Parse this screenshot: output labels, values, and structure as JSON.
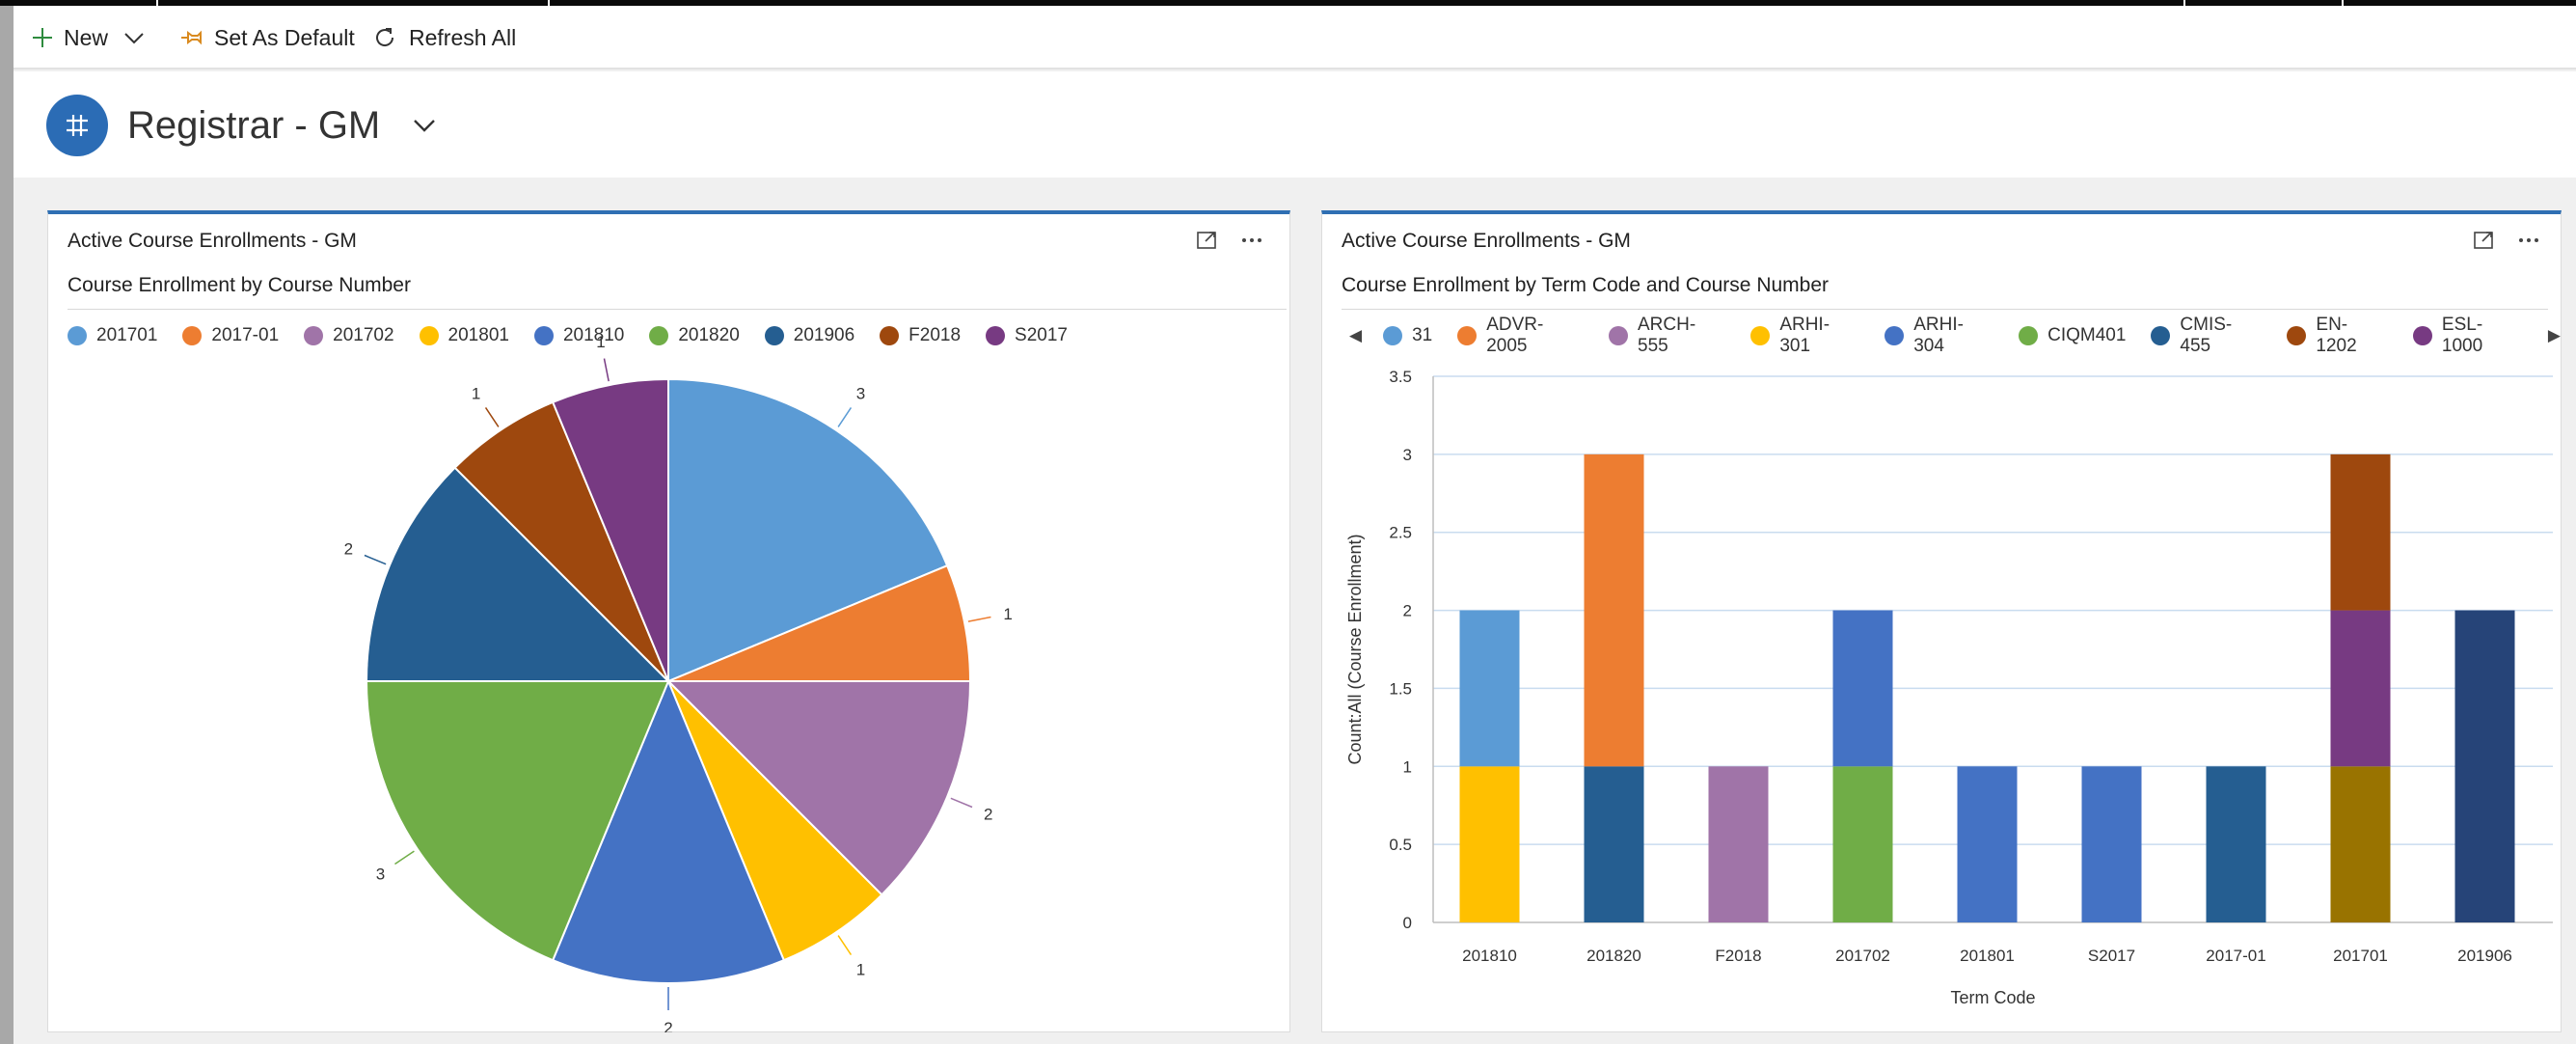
{
  "command_bar": {
    "new_label": "New",
    "set_default_label": "Set As Default",
    "refresh_label": "Refresh All"
  },
  "header": {
    "title": "Registrar - GM"
  },
  "colors": {
    "accent": "#2f6fb3",
    "topbar": "#0a0a0a"
  },
  "cards": [
    {
      "title": "Active Course Enrollments - GM",
      "subtitle": "Course Enrollment by Course Number"
    },
    {
      "title": "Active Course Enrollments - GM",
      "subtitle": "Course Enrollment by Term Code and Course Number"
    }
  ],
  "chart_data": [
    {
      "type": "pie",
      "title": "Course Enrollment by Course Number",
      "categories": [
        "201701",
        "2017-01",
        "201702",
        "201801",
        "201810",
        "201820",
        "201906",
        "F2018",
        "S2017"
      ],
      "values": [
        3,
        1,
        2,
        1,
        2,
        3,
        2,
        1,
        1
      ],
      "colors": [
        "#5b9bd5",
        "#ed7d31",
        "#a074a8",
        "#ffc000",
        "#4472c4",
        "#70ad47",
        "#255e91",
        "#9e480e",
        "#773a82"
      ],
      "legend_position": "top-left",
      "data_labels": true
    },
    {
      "type": "bar",
      "stacked": true,
      "title": "Course Enrollment by Term Code and Course Number",
      "xlabel": "Term Code",
      "ylabel": "Count:All (Course Enrollment)",
      "ylim": [
        0,
        3.5
      ],
      "yticks": [
        "0",
        "0.5",
        "1",
        "1.5",
        "2",
        "2.5",
        "3",
        "3.5"
      ],
      "categories": [
        "201810",
        "201820",
        "F2018",
        "201702",
        "201801",
        "S2017",
        "2017-01",
        "201701",
        "201906"
      ],
      "legend": [
        {
          "name": "31",
          "color": "#5b9bd5"
        },
        {
          "name": "ADVR-2005",
          "color": "#ed7d31"
        },
        {
          "name": "ARCH-555",
          "color": "#a074a8"
        },
        {
          "name": "ARHI-301",
          "color": "#ffc000"
        },
        {
          "name": "ARHI-304",
          "color": "#4472c4"
        },
        {
          "name": "CIQM401",
          "color": "#70ad47"
        },
        {
          "name": "CMIS-455",
          "color": "#255e91"
        },
        {
          "name": "EN-1202",
          "color": "#9e480e"
        },
        {
          "name": "ESL-1000",
          "color": "#773a82"
        }
      ],
      "stacks": [
        [
          {
            "value": 1,
            "color": "#ffc000"
          },
          {
            "value": 1,
            "color": "#5b9bd5"
          }
        ],
        [
          {
            "value": 1,
            "color": "#255e91"
          },
          {
            "value": 2,
            "color": "#ed7d31"
          }
        ],
        [
          {
            "value": 1,
            "color": "#a074a8"
          }
        ],
        [
          {
            "value": 1,
            "color": "#70ad47"
          },
          {
            "value": 1,
            "color": "#4472c4"
          }
        ],
        [
          {
            "value": 1,
            "color": "#4472c4"
          }
        ],
        [
          {
            "value": 1,
            "color": "#4472c4"
          }
        ],
        [
          {
            "value": 1,
            "color": "#255e91"
          }
        ],
        [
          {
            "value": 1,
            "color": "#997300"
          },
          {
            "value": 1,
            "color": "#773a82"
          },
          {
            "value": 1,
            "color": "#9e480e"
          }
        ],
        [
          {
            "value": 2,
            "color": "#264478"
          }
        ]
      ],
      "legend_position": "top",
      "grid": true
    }
  ]
}
